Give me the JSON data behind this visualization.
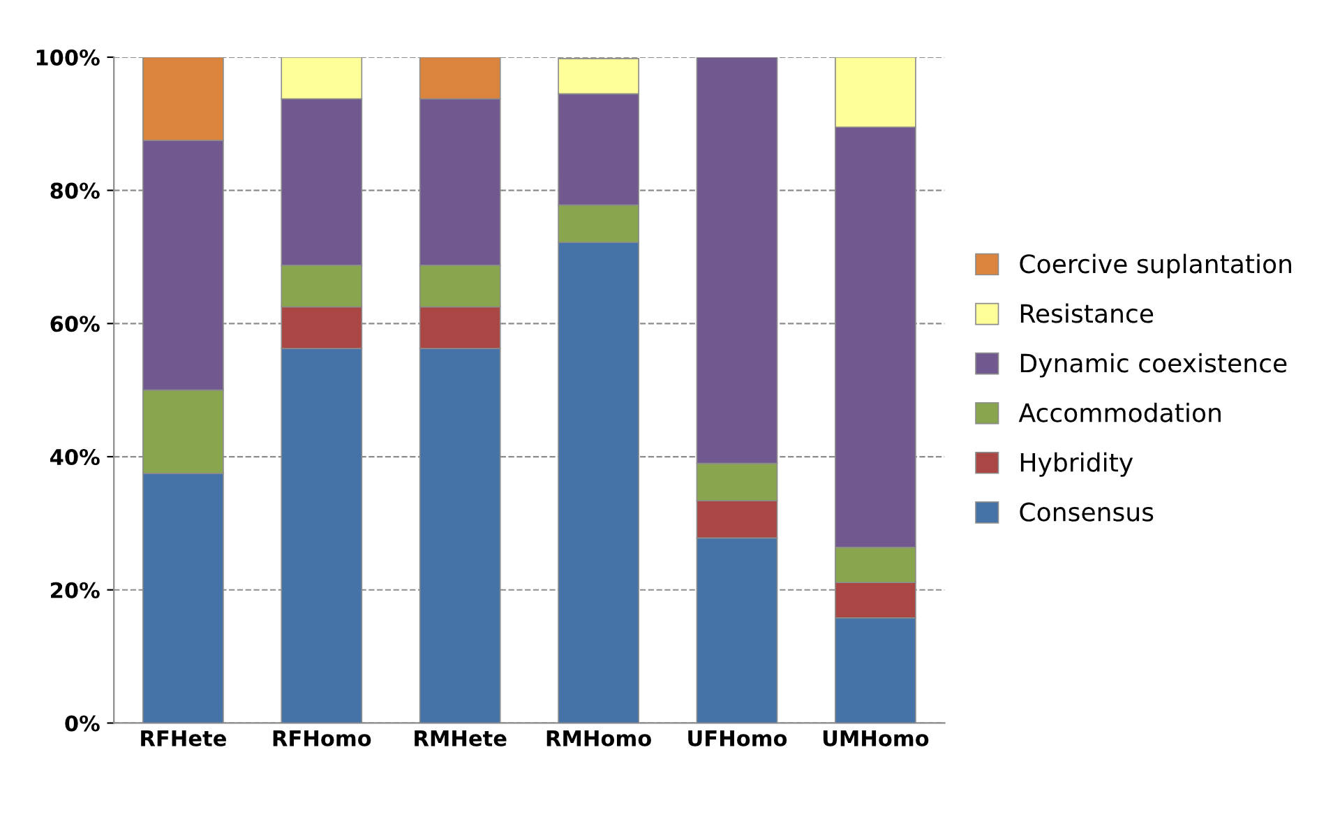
{
  "chart_data": {
    "type": "bar",
    "stacked": true,
    "categories": [
      "RFHete",
      "RFHomo",
      "RMHete",
      "RMHomo",
      "UFHomo",
      "UMHomo"
    ],
    "series": [
      {
        "name": "Consensus",
        "color": "#4572a7",
        "values": [
          37.5,
          56.25,
          56.25,
          72.2,
          27.8,
          15.8
        ]
      },
      {
        "name": "Hybridity",
        "color": "#aa4643",
        "values": [
          null,
          6.25,
          6.25,
          null,
          5.6,
          5.3
        ]
      },
      {
        "name": "Accommodation",
        "color": "#89a54e",
        "values": [
          12.5,
          6.25,
          6.25,
          5.6,
          5.6,
          5.3
        ]
      },
      {
        "name": "Dynamic coexistence",
        "color": "#71588f",
        "values": [
          37.5,
          25,
          25,
          16.7,
          61.0,
          63.1
        ]
      },
      {
        "name": "Resistance",
        "color": "#ffff99",
        "values": [
          null,
          6.25,
          null,
          5.3,
          null,
          10.5
        ]
      },
      {
        "name": "Coercive suplantation",
        "color": "#db843d",
        "values": [
          12.5,
          null,
          6.25,
          null,
          null,
          null
        ]
      }
    ],
    "ylim": [
      0,
      100
    ],
    "yticks": [
      {
        "value": 0,
        "label": "0%"
      },
      {
        "value": 20,
        "label": "20%"
      },
      {
        "value": 40,
        "label": "40%"
      },
      {
        "value": 60,
        "label": "60%"
      },
      {
        "value": 80,
        "label": "80%"
      },
      {
        "value": 100,
        "label": "100%"
      }
    ],
    "grid": "y",
    "legend": "right"
  }
}
